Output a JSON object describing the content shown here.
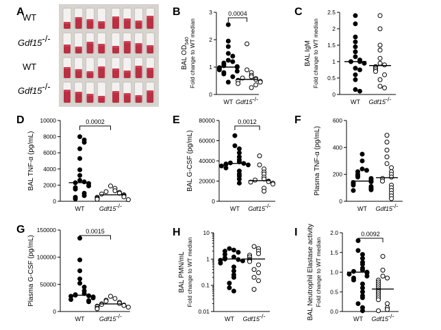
{
  "figure": {
    "panel_a": {
      "letter": "A",
      "rows": [
        {
          "label": "WT",
          "italic": false,
          "tubes": 8
        },
        {
          "label": "Gdf15",
          "superscript": "-/-",
          "italic": true,
          "tubes": 8
        },
        {
          "label": "WT",
          "italic": false,
          "tubes": 8
        },
        {
          "label": "Gdf15",
          "superscript": "-/-",
          "italic": true,
          "tubes": 8
        }
      ]
    },
    "groups": {
      "wt": "WT",
      "ko": "Gdf15",
      "ko_sup": "-/-"
    }
  },
  "chart_data": [
    {
      "id": "B",
      "letter": "B",
      "type": "scatter",
      "ylabel": "BAL OD",
      "ylabel_sub": "540",
      "ylabel2": "Fold change to WT median",
      "ylim": [
        0,
        3
      ],
      "yticks": [
        0,
        1,
        2,
        3
      ],
      "scale": "linear",
      "p_value": "0.0004",
      "wt": [
        2.55,
        1.95,
        1.75,
        1.5,
        1.4,
        1.25,
        1.2,
        1.15,
        1.1,
        1.05,
        1.02,
        1.0,
        0.98,
        0.95,
        0.9,
        0.85,
        0.8,
        0.75,
        0.65,
        0.45
      ],
      "ko": [
        1.85,
        0.9,
        0.8,
        0.7,
        0.65,
        0.6,
        0.58,
        0.55,
        0.52,
        0.5,
        0.48,
        0.45,
        0.4,
        0.35,
        0.25
      ],
      "wt_median": 1.0,
      "ko_median": 0.55
    },
    {
      "id": "C",
      "letter": "C",
      "type": "scatter",
      "ylabel": "BAL IgM",
      "ylabel2": "Fold change to WT median",
      "ylim": [
        0,
        2.5
      ],
      "yticks": [
        0,
        0.5,
        1,
        1.5,
        2,
        2.5
      ],
      "scale": "linear",
      "wt": [
        2.4,
        2.15,
        1.75,
        1.6,
        1.45,
        1.3,
        1.15,
        1.05,
        1.0,
        1.0,
        0.95,
        0.8,
        0.75,
        0.6,
        0.45,
        0.15,
        0.1
      ],
      "ko": [
        2.4,
        2.0,
        1.5,
        1.35,
        1.1,
        0.95,
        0.9,
        0.85,
        0.8,
        0.75,
        0.7,
        0.6,
        0.45,
        0.25,
        0.2
      ],
      "wt_median": 1.0,
      "ko_median": 0.88
    },
    {
      "id": "D",
      "letter": "D",
      "type": "scatter",
      "ylabel": "BAL TNF-α (pg/mL)",
      "ylim": [
        0,
        10000
      ],
      "yticks": [
        0,
        2000,
        4000,
        6000,
        8000,
        10000
      ],
      "scale": "linear",
      "p_value": "0.0002",
      "wt": [
        8000,
        7600,
        7300,
        6500,
        5300,
        3900,
        3200,
        2600,
        2400,
        2300,
        2200,
        1900,
        1700,
        1500,
        1000,
        700,
        500,
        300
      ],
      "ko": [
        1900,
        1600,
        1300,
        1200,
        1100,
        1000,
        900,
        800,
        700,
        600,
        550,
        500,
        400,
        300,
        250,
        200
      ],
      "wt_median": 2300,
      "ko_median": 800
    },
    {
      "id": "E",
      "letter": "E",
      "type": "scatter",
      "ylabel": "BAL G-CSF (pg/mL)",
      "ylim": [
        0,
        80000
      ],
      "yticks": [
        0,
        20000,
        40000,
        60000,
        80000
      ],
      "scale": "linear",
      "p_value": "0.0012",
      "wt": [
        65000,
        55000,
        52000,
        48000,
        44000,
        41000,
        39000,
        38000,
        37500,
        37000,
        36500,
        36000,
        35000,
        33000,
        30000,
        27000,
        25000,
        22000,
        18000
      ],
      "ko": [
        45000,
        36000,
        32000,
        29000,
        27000,
        24000,
        22000,
        21000,
        20000,
        19500,
        19000,
        18000,
        17000,
        13000,
        10000
      ],
      "wt_median": 37500,
      "ko_median": 20500
    },
    {
      "id": "F",
      "letter": "F",
      "type": "scatter",
      "ylabel": "Plasma TNF-α (pg/mL)",
      "ylim": [
        0,
        600
      ],
      "yticks": [
        0,
        200,
        400,
        600
      ],
      "scale": "linear",
      "wt": [
        350,
        300,
        240,
        230,
        220,
        200,
        190,
        180,
        170,
        160,
        150,
        145,
        140,
        130,
        120,
        110,
        100,
        90,
        85,
        80
      ],
      "ko": [
        490,
        440,
        380,
        330,
        280,
        250,
        220,
        200,
        180,
        170,
        150,
        120,
        100,
        80,
        60,
        40,
        20
      ],
      "wt_median": 150,
      "ko_median": 175
    },
    {
      "id": "G",
      "letter": "G",
      "type": "scatter",
      "ylabel": "Plasma G-CSF (pg/mL)",
      "ylim": [
        0,
        150000
      ],
      "yticks": [
        0,
        50000,
        100000,
        150000
      ],
      "scale": "linear",
      "p_value": "0.0015",
      "wt": [
        135000,
        95000,
        75000,
        60000,
        52000,
        45000,
        38000,
        33000,
        31000,
        30000,
        29000,
        28000,
        27000,
        25000,
        22000,
        20000,
        18000
      ],
      "ko": [
        28000,
        24000,
        21000,
        19000,
        17000,
        15000,
        14000,
        13000,
        12000,
        11000,
        10000,
        9000,
        8000,
        6000,
        5000
      ],
      "wt_median": 30000,
      "ko_median": 14000
    },
    {
      "id": "H",
      "letter": "H",
      "type": "scatter",
      "ylabel": "BAL PMN/mL",
      "ylabel2": "Fold change to WT median",
      "ylim": [
        0.01,
        10
      ],
      "yticks": [
        0.01,
        0.1,
        1,
        10
      ],
      "ytick_labels": [
        "0.01",
        "0.1",
        "1",
        "10"
      ],
      "scale": "log",
      "wt": [
        2.5,
        2.2,
        2.0,
        1.8,
        1.5,
        1.2,
        1.1,
        1.0,
        0.95,
        0.9,
        0.85,
        0.7,
        0.5,
        0.35,
        0.25,
        0.2,
        0.12,
        0.08,
        0.06
      ],
      "ko": [
        3.0,
        2.5,
        2.0,
        1.6,
        1.4,
        1.2,
        1.0,
        0.9,
        0.8,
        0.6,
        0.4,
        0.3,
        0.2,
        0.15,
        0.07
      ],
      "wt_median": 1.0,
      "ko_median": 1.0
    },
    {
      "id": "I",
      "letter": "I",
      "type": "scatter",
      "ylabel": "BAL Neutrophil Elastase activity",
      "ylabel2": "Fold change to WT median",
      "ylim": [
        0,
        2.0
      ],
      "yticks": [
        0,
        0.5,
        1.0,
        1.5,
        2.0
      ],
      "ytick_labels": [
        "0.0",
        "0.5",
        "1.0",
        "1.5",
        "2.0"
      ],
      "scale": "linear",
      "p_value": "0.0092",
      "wt": [
        1.8,
        1.55,
        1.45,
        1.35,
        1.25,
        1.2,
        1.1,
        1.05,
        1.02,
        1.0,
        0.98,
        0.95,
        0.9,
        0.85,
        0.8,
        0.7,
        0.6,
        0.5,
        0.4,
        0.35,
        0.2,
        0.1,
        0.02
      ],
      "ko": [
        1.4,
        1.05,
        0.9,
        0.85,
        0.8,
        0.75,
        0.7,
        0.65,
        0.6,
        0.55,
        0.5,
        0.45,
        0.4,
        0.35,
        0.3,
        0.2,
        0.1,
        0.05,
        0.02
      ],
      "wt_median": 1.0,
      "ko_median": 0.57
    }
  ]
}
